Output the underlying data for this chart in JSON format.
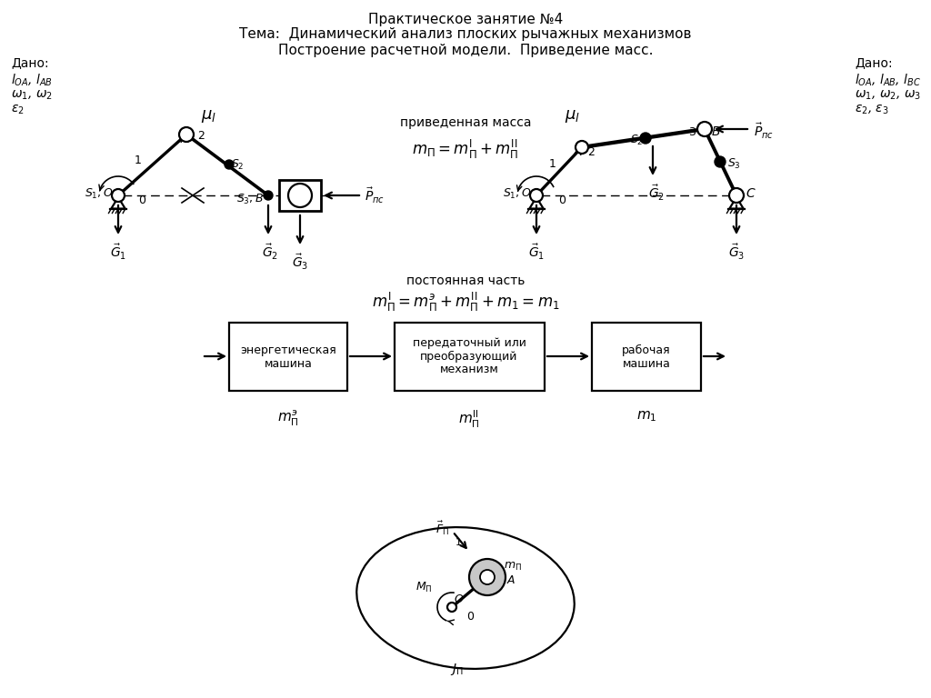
{
  "title1": "Практическое занятие №4",
  "title2": "Тема:  Динамический анализ плоских рычажных механизмов",
  "title3": "Построение расчетной модели.  Приведение масс.",
  "dado_left": "Дано:",
  "dado_right": "Дано:",
  "loa_lab_left": "$l_{OA}$, $l_{AB}$",
  "omega_left": "$\\omega_1$, $\\omega_2$",
  "eps_left": "$\\varepsilon_2$",
  "loa_lab_right": "$l_{OA}$, $l_{AB}$, $l_{BC}$",
  "omega_right": "$\\omega_1$, $\\omega_2$, $\\omega_3$",
  "eps_right": "$\\varepsilon_2$, $\\varepsilon_3$",
  "mu_l": "$\\mu_l$",
  "prim_massa": "приведенная масса",
  "formula_pm": "$m_{\\Pi} = m_{\\Pi}^{\\rm I} + m_{\\Pi}^{\\rm II}$",
  "post_chast": "постоянная часть",
  "formula_const": "$m_{\\Pi}^{\\rm I} = m_{\\Pi}^{\\mathit{э}} + m_{\\Pi}^{\\rm II} + m_1 = m_1$",
  "block1": "энергетическая\nмашина",
  "block2": "передаточный или\nпреобразующий\nмеханизм",
  "block3": "рабочая\nмашина",
  "m_e": "$m_{\\Pi}^{\\mathit{э}}$",
  "m_II": "$m_{\\Pi}^{\\rm II}$",
  "m_1": "$m_1$",
  "bg_color": "#ffffff",
  "lc": "#000000",
  "lw": 1.6
}
